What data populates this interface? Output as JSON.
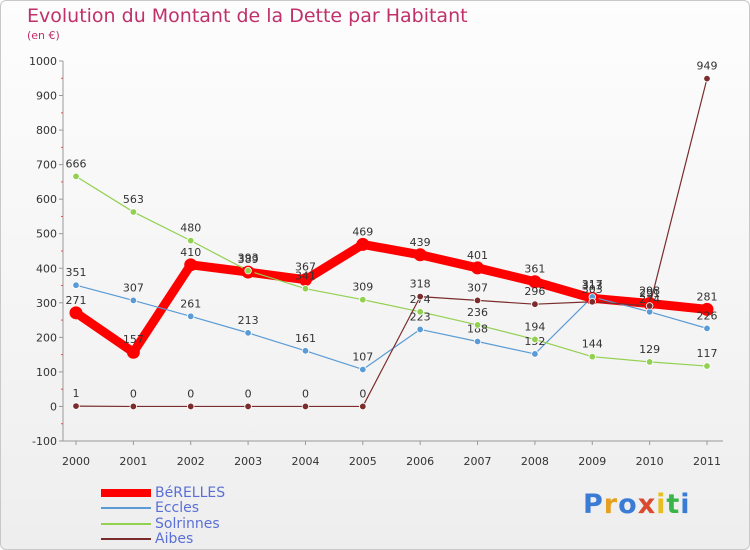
{
  "header": {
    "title": "Evolution du Montant de la Dette par Habitant",
    "subtitle": "(en €)"
  },
  "logo": {
    "text": "Proxiti",
    "colors": [
      "#3a7bd5",
      "#e6a020",
      "#3a7bd5",
      "#d94a2e",
      "#e6c020",
      "#3ab54a",
      "#3a7bd5"
    ]
  },
  "chart_data": {
    "type": "line",
    "categories": [
      "2000",
      "2001",
      "2002",
      "2003",
      "2004",
      "2005",
      "2006",
      "2007",
      "2008",
      "2009",
      "2010",
      "2011"
    ],
    "ylim": [
      -100,
      1000
    ],
    "yticks": [
      -100,
      0,
      100,
      200,
      300,
      400,
      500,
      600,
      700,
      800,
      900,
      1000
    ],
    "grid": false,
    "legend_position": "bottom-left",
    "series": [
      {
        "name": "BéRELLES",
        "color": "#ff0000",
        "width": 9,
        "values": [
          271,
          157,
          410,
          389,
          367,
          469,
          439,
          401,
          361,
          313,
          298,
          281
        ]
      },
      {
        "name": "Eccles",
        "color": "#5b9bd5",
        "width": 1.2,
        "values": [
          351,
          307,
          261,
          213,
          161,
          107,
          223,
          188,
          152,
          317,
          274,
          226
        ]
      },
      {
        "name": "Solrinnes",
        "color": "#92d050",
        "width": 1.2,
        "values": [
          666,
          563,
          480,
          393,
          341,
          309,
          274,
          236,
          194,
          144,
          129,
          117
        ]
      },
      {
        "name": "Aibes",
        "color": "#7b2c2c",
        "width": 1.2,
        "values": [
          1,
          0,
          0,
          0,
          0,
          0,
          318,
          307,
          296,
          303,
          291,
          949
        ]
      }
    ]
  }
}
